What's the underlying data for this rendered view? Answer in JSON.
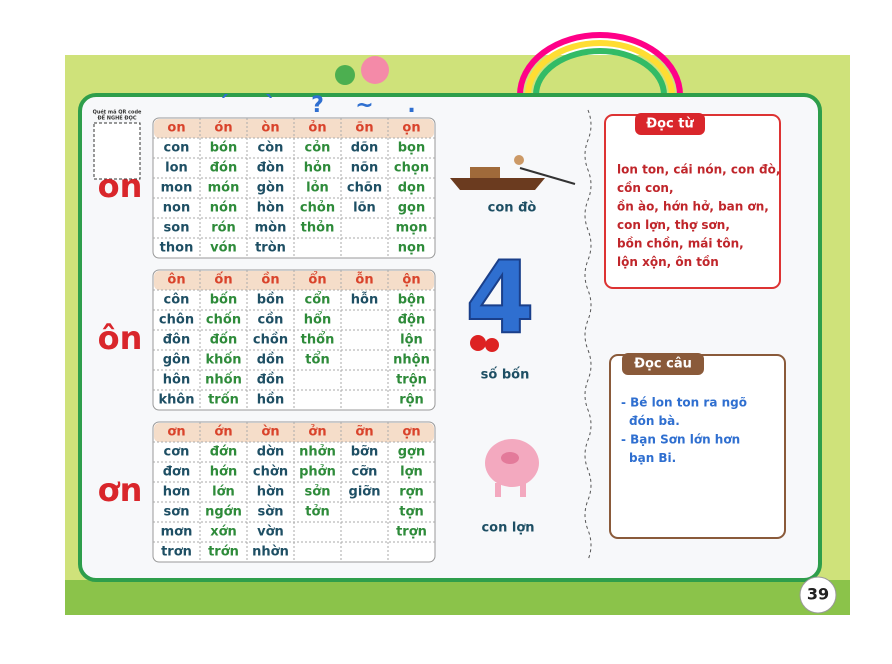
{
  "qr_note": [
    "Quét mã QR code",
    "ĐỂ NGHE ĐỌC"
  ],
  "tone_marks": [
    "ˊ",
    "ˋ",
    "?",
    "~",
    "."
  ],
  "tables": [
    {
      "label": "on",
      "header": [
        "on",
        "ón",
        "òn",
        "ỏn",
        "õn",
        "ọn"
      ],
      "rows": [
        [
          "con",
          "bón",
          "còn",
          "cỏn",
          "dõn",
          "bọn"
        ],
        [
          "lon",
          "đón",
          "đòn",
          "hỏn",
          "nõn",
          "chọn"
        ],
        [
          "mon",
          "món",
          "gòn",
          "lỏn",
          "chõn",
          "dọn"
        ],
        [
          "non",
          "nón",
          "hòn",
          "chỏn",
          "lõn",
          "gọn"
        ],
        [
          "son",
          "rón",
          "mòn",
          "thỏn",
          null,
          "mọn"
        ],
        [
          "thon",
          "vón",
          "tròn",
          null,
          null,
          "nọn"
        ]
      ]
    },
    {
      "label": "ôn",
      "header": [
        "ôn",
        "ốn",
        "ồn",
        "ổn",
        "ỗn",
        "ộn"
      ],
      "rows": [
        [
          "côn",
          "bốn",
          "bồn",
          "cổn",
          "hỗn",
          "bộn"
        ],
        [
          "chôn",
          "chốn",
          "cồn",
          "hổn",
          null,
          "độn"
        ],
        [
          "đôn",
          "đốn",
          "chồn",
          "thổn",
          null,
          "lộn"
        ],
        [
          "gôn",
          "khốn",
          "dồn",
          "tổn",
          null,
          "nhộn"
        ],
        [
          "hôn",
          "nhốn",
          "đồn",
          null,
          null,
          "trộn"
        ],
        [
          "khôn",
          "trốn",
          "hồn",
          null,
          null,
          "rộn"
        ]
      ]
    },
    {
      "label": "ơn",
      "header": [
        "ơn",
        "ớn",
        "ờn",
        "ởn",
        "ỡn",
        "ợn"
      ],
      "rows": [
        [
          "cơn",
          "đớn",
          "dờn",
          "nhởn",
          "bỡn",
          "gợn"
        ],
        [
          "đơn",
          "hớn",
          "chờn",
          "phởn",
          "cỡn",
          "lợn"
        ],
        [
          "hơn",
          "lớn",
          "hờn",
          "sởn",
          "giỡn",
          "rợn"
        ],
        [
          "sơn",
          "ngớn",
          "sờn",
          "tởn",
          null,
          "tợn"
        ],
        [
          "mơn",
          "xớn",
          "vờn",
          null,
          null,
          "trợn"
        ],
        [
          "trơn",
          "trớn",
          "nhờn",
          null,
          null,
          null
        ]
      ]
    }
  ],
  "captions": [
    "con đò",
    "số bốn",
    "con lợn"
  ],
  "reading_words": {
    "title": "Đọc từ",
    "lines": [
      "lon ton, cái nón, con đò,",
      "cồn con,",
      "ồn ào, hớn hở, ban ơn,",
      "con lợn, thợ sơn,",
      "bồn chồn, mái tôn,",
      "lộn xộn, ôn tồn"
    ]
  },
  "reading_sentences": {
    "title": "Đọc câu",
    "lines": [
      "- Bé lon ton ra ngõ",
      "đón bà.",
      "- Bạn Sơn lớn hơn",
      "bạn Bi."
    ]
  },
  "page_number": 39
}
